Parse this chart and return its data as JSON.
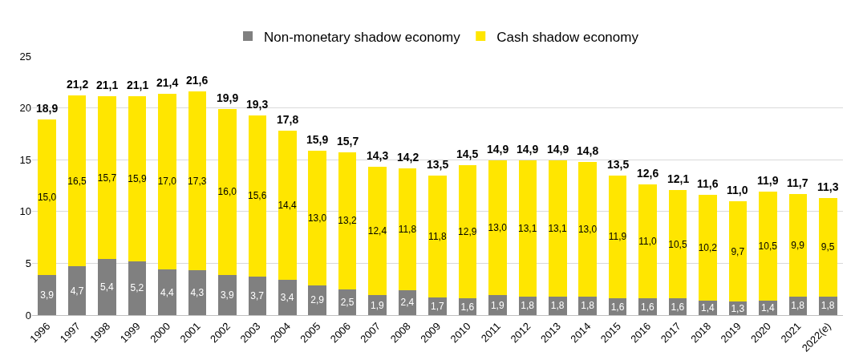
{
  "chart_data": {
    "type": "bar",
    "stacked": true,
    "categories": [
      "1996",
      "1997",
      "1998",
      "1999",
      "2000",
      "2001",
      "2002",
      "2003",
      "2004",
      "2005",
      "2006",
      "2007",
      "2008",
      "2009",
      "2010",
      "2011",
      "2012",
      "2013",
      "2014",
      "2015",
      "2016",
      "2017",
      "2018",
      "2019",
      "2020",
      "2021",
      "2022(e)"
    ],
    "series": [
      {
        "name": "Non-monetary shadow economy",
        "color": "#808080",
        "values": [
          3.9,
          4.7,
          5.4,
          5.2,
          4.4,
          4.3,
          3.9,
          3.7,
          3.4,
          2.9,
          2.5,
          1.9,
          2.4,
          1.7,
          1.6,
          1.9,
          1.8,
          1.8,
          1.8,
          1.6,
          1.6,
          1.6,
          1.4,
          1.3,
          1.4,
          1.8,
          1.8
        ],
        "value_labels": [
          "3,9",
          "4,7",
          "5,4",
          "5,2",
          "4,4",
          "4,3",
          "3,9",
          "3,7",
          "3,4",
          "2,9",
          "2,5",
          "1,9",
          "2,4",
          "1,7",
          "1,6",
          "1,9",
          "1,8",
          "1,8",
          "1,8",
          "1,6",
          "1,6",
          "1,6",
          "1,4",
          "1,3",
          "1,4",
          "1,8",
          "1,8"
        ]
      },
      {
        "name": "Cash shadow economy",
        "color": "#ffe600",
        "values": [
          15.0,
          16.5,
          15.7,
          15.9,
          17.0,
          17.3,
          16.0,
          15.6,
          14.4,
          13.0,
          13.2,
          12.4,
          11.8,
          11.8,
          12.9,
          13.0,
          13.1,
          13.1,
          13.0,
          11.9,
          11.0,
          10.5,
          10.2,
          9.7,
          10.5,
          9.9,
          9.5
        ],
        "value_labels": [
          "15,0",
          "16,5",
          "15,7",
          "15,9",
          "17,0",
          "17,3",
          "16,0",
          "15,6",
          "14,4",
          "13,0",
          "13,2",
          "12,4",
          "11,8",
          "11,8",
          "12,9",
          "13,0",
          "13,1",
          "13,1",
          "13,0",
          "11,9",
          "11,0",
          "10,5",
          "10,2",
          "9,7",
          "10,5",
          "9,9",
          "9,5"
        ]
      }
    ],
    "totals": [
      "18,9",
      "21,2",
      "21,1",
      "21,1",
      "21,4",
      "21,6",
      "19,9",
      "19,3",
      "17,8",
      "15,9",
      "15,7",
      "14,3",
      "14,2",
      "13,5",
      "14,5",
      "14,9",
      "14,9",
      "14,9",
      "14,8",
      "13,5",
      "12,6",
      "12,1",
      "11,6",
      "11,0",
      "11,9",
      "11,7",
      "11,3"
    ],
    "ylim": [
      0,
      25
    ],
    "yticks": [
      0,
      5,
      10,
      15,
      20,
      25
    ],
    "grid": "y",
    "legend": "top"
  }
}
